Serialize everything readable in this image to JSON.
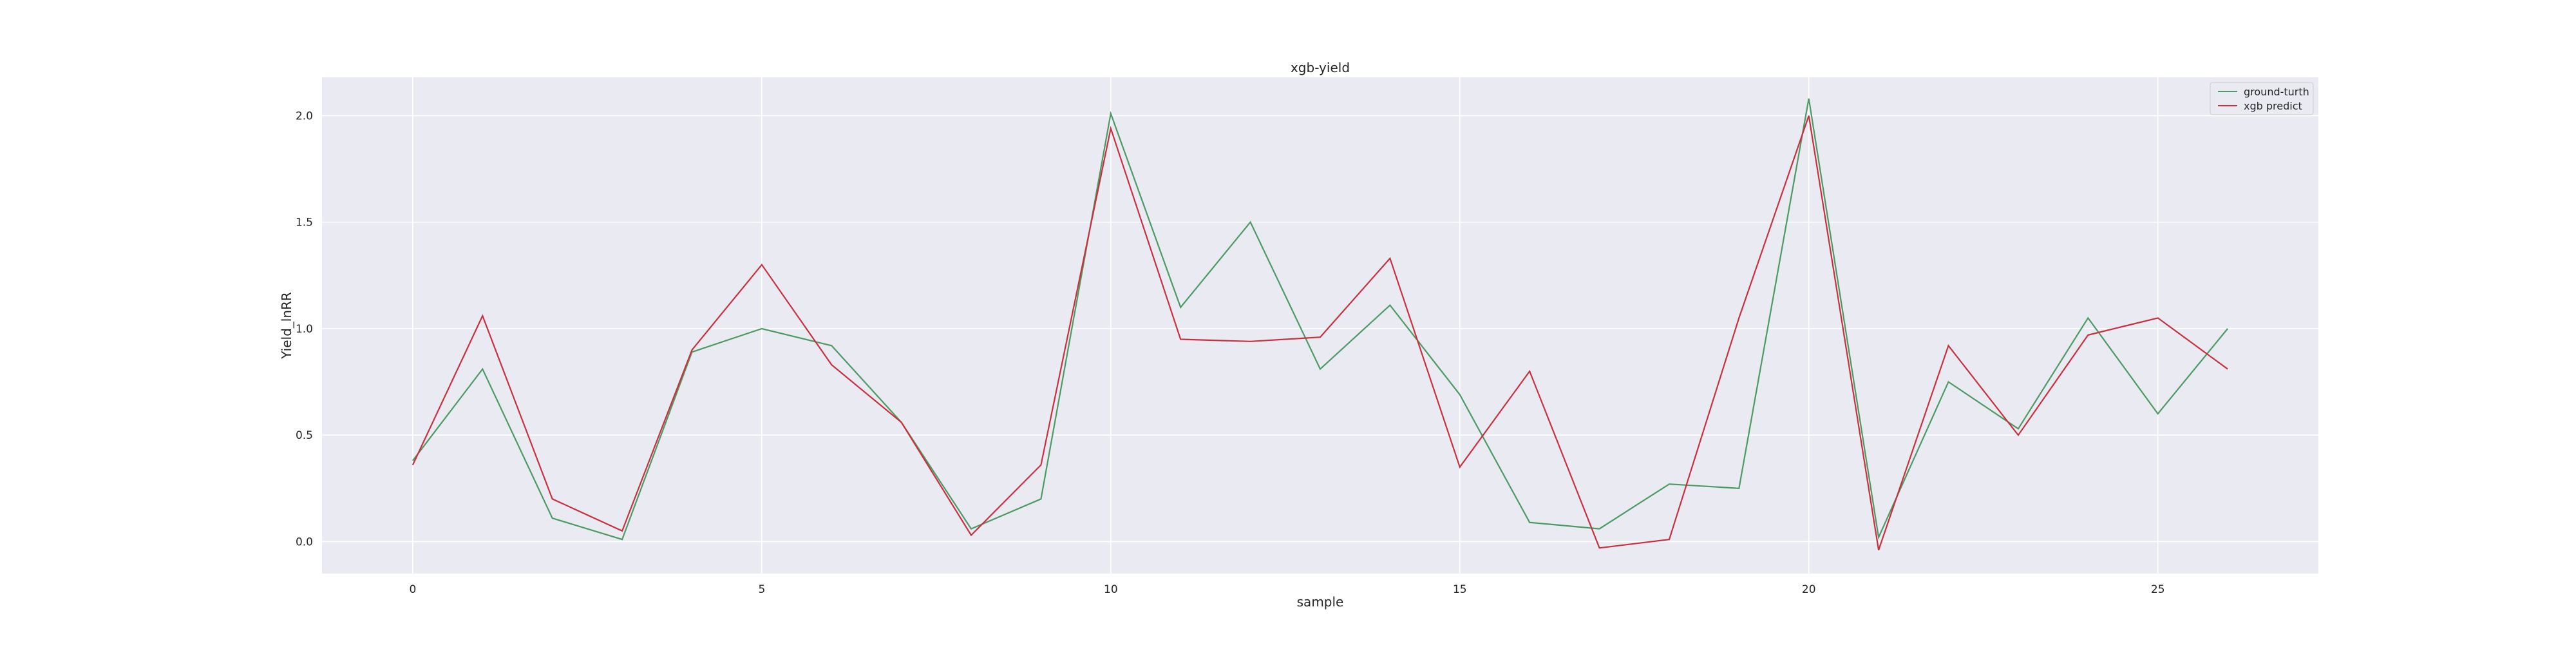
{
  "chart_data": {
    "type": "line",
    "title": "xgb-yield",
    "xlabel": "sample",
    "ylabel": "Yield_lnRR",
    "xlim": [
      -1.3,
      27.3
    ],
    "ylim": [
      -0.15,
      2.18
    ],
    "xticks": [
      0,
      5,
      10,
      15,
      20,
      25
    ],
    "yticks": [
      0.0,
      0.5,
      1.0,
      1.5,
      2.0
    ],
    "xtick_labels": [
      "0",
      "5",
      "10",
      "15",
      "20",
      "25"
    ],
    "ytick_labels": [
      "0.0",
      "0.5",
      "1.0",
      "1.5",
      "2.0"
    ],
    "grid": true,
    "legend_position": "top-right",
    "x": [
      0,
      1,
      2,
      3,
      4,
      5,
      6,
      7,
      8,
      9,
      10,
      11,
      12,
      13,
      14,
      15,
      16,
      17,
      18,
      19,
      20,
      21,
      22,
      23,
      24,
      25,
      26
    ],
    "series": [
      {
        "name": "ground-turth",
        "color": "#4c9a63",
        "values": [
          0.38,
          0.81,
          0.11,
          0.01,
          0.89,
          1.0,
          0.92,
          0.56,
          0.06,
          0.2,
          2.01,
          1.1,
          1.5,
          0.81,
          1.11,
          0.69,
          0.09,
          0.06,
          0.27,
          0.25,
          2.08,
          0.02,
          0.75,
          0.53,
          1.05,
          0.6,
          1.0
        ]
      },
      {
        "name": "xgb predict",
        "color": "#c9303e",
        "values": [
          0.36,
          1.06,
          0.2,
          0.05,
          0.9,
          1.3,
          0.83,
          0.56,
          0.03,
          0.36,
          1.94,
          0.95,
          0.94,
          0.96,
          1.33,
          0.35,
          0.8,
          -0.03,
          0.01,
          1.05,
          2.0,
          -0.04,
          0.92,
          0.5,
          0.97,
          1.05,
          0.81
        ]
      }
    ]
  }
}
